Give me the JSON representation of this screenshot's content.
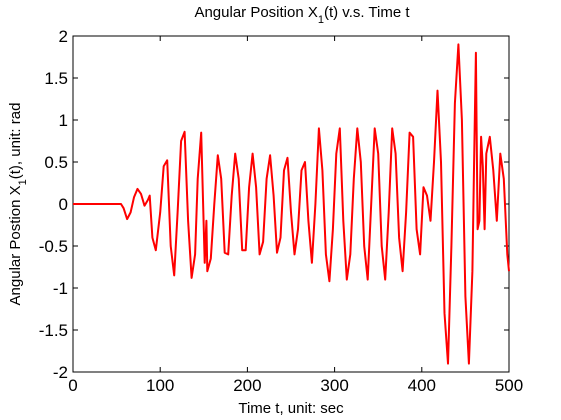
{
  "chart_data": {
    "type": "line",
    "title": "Angular Position X",
    "title_subscript": "1",
    "title_suffix": "(t)  v.s.  Time t",
    "xlabel": "Time t, unit: sec",
    "ylabel_prefix": "Angular Postion X",
    "ylabel_subscript": "1",
    "ylabel_suffix": "(t), unit: rad",
    "xlim": [
      0,
      500
    ],
    "ylim": [
      -2,
      2
    ],
    "xticks": [
      0,
      100,
      200,
      300,
      400,
      500
    ],
    "yticks": [
      -2,
      -1.5,
      -1,
      -0.5,
      0,
      0.5,
      1,
      1.5,
      2
    ],
    "xtick_labels": [
      "0",
      "100",
      "200",
      "300",
      "400",
      "500"
    ],
    "ytick_labels": [
      "-2",
      "-1.5",
      "-1",
      "-0.5",
      "0",
      "0.5",
      "1",
      "1.5",
      "2"
    ],
    "grid": false,
    "line_color": "#ff0000",
    "series": [
      {
        "x": [
          0,
          55,
          58,
          62,
          66,
          70,
          74,
          78,
          82,
          86,
          88,
          91,
          95,
          100,
          104,
          108,
          112,
          116,
          120,
          124,
          128,
          132,
          136,
          140,
          143,
          147,
          151,
          153,
          154,
          158,
          162,
          166,
          170,
          174,
          178,
          182,
          186,
          190,
          194,
          198,
          202,
          206,
          210,
          214,
          218,
          222,
          226,
          230,
          234,
          238,
          242,
          246,
          250,
          254,
          258,
          262,
          266,
          270,
          274,
          278,
          282,
          286,
          290,
          294,
          298,
          302,
          306,
          310,
          314,
          318,
          322,
          326,
          330,
          334,
          338,
          342,
          346,
          350,
          354,
          358,
          362,
          366,
          370,
          374,
          378,
          382,
          386,
          390,
          394,
          398,
          402,
          406,
          410,
          414,
          418,
          422,
          426,
          430,
          434,
          438,
          442,
          446,
          450,
          454,
          458,
          460,
          462,
          463,
          464,
          466,
          468,
          470,
          472,
          474,
          478,
          482,
          486,
          490,
          494,
          498,
          500
        ],
        "y": [
          0,
          0,
          -0.05,
          -0.18,
          -0.1,
          0.08,
          0.18,
          0.12,
          -0.02,
          0.05,
          0.1,
          -0.4,
          -0.55,
          -0.1,
          0.45,
          0.52,
          -0.5,
          -0.85,
          -0.1,
          0.75,
          0.86,
          -0.2,
          -0.88,
          -0.6,
          0.3,
          0.85,
          -0.7,
          -0.2,
          -0.8,
          -0.65,
          0.0,
          0.58,
          0.3,
          -0.58,
          -0.6,
          0.1,
          0.6,
          0.3,
          -0.55,
          -0.55,
          0.2,
          0.6,
          0.2,
          -0.6,
          -0.45,
          0.3,
          0.58,
          0.1,
          -0.58,
          -0.4,
          0.4,
          0.55,
          -0.1,
          -0.6,
          -0.3,
          0.4,
          0.5,
          -0.2,
          -0.7,
          0.0,
          0.9,
          0.4,
          -0.6,
          -0.92,
          -0.3,
          0.6,
          0.9,
          -0.2,
          -0.9,
          -0.6,
          0.3,
          0.9,
          0.5,
          -0.5,
          -0.9,
          0.0,
          0.9,
          0.6,
          -0.5,
          -0.9,
          -0.1,
          0.9,
          0.6,
          -0.4,
          -0.8,
          -0.1,
          0.85,
          0.8,
          -0.3,
          -0.6,
          0.2,
          0.1,
          -0.2,
          0.5,
          1.35,
          0.5,
          -1.3,
          -1.9,
          -0.5,
          1.2,
          1.9,
          1.0,
          -1.1,
          -1.9,
          -0.8,
          0.5,
          1.8,
          0.8,
          -0.3,
          -0.2,
          0.8,
          0.45,
          -0.3,
          0.6,
          0.8,
          0.4,
          -0.2,
          0.6,
          0.3,
          -0.6,
          -0.8
        ]
      }
    ]
  }
}
